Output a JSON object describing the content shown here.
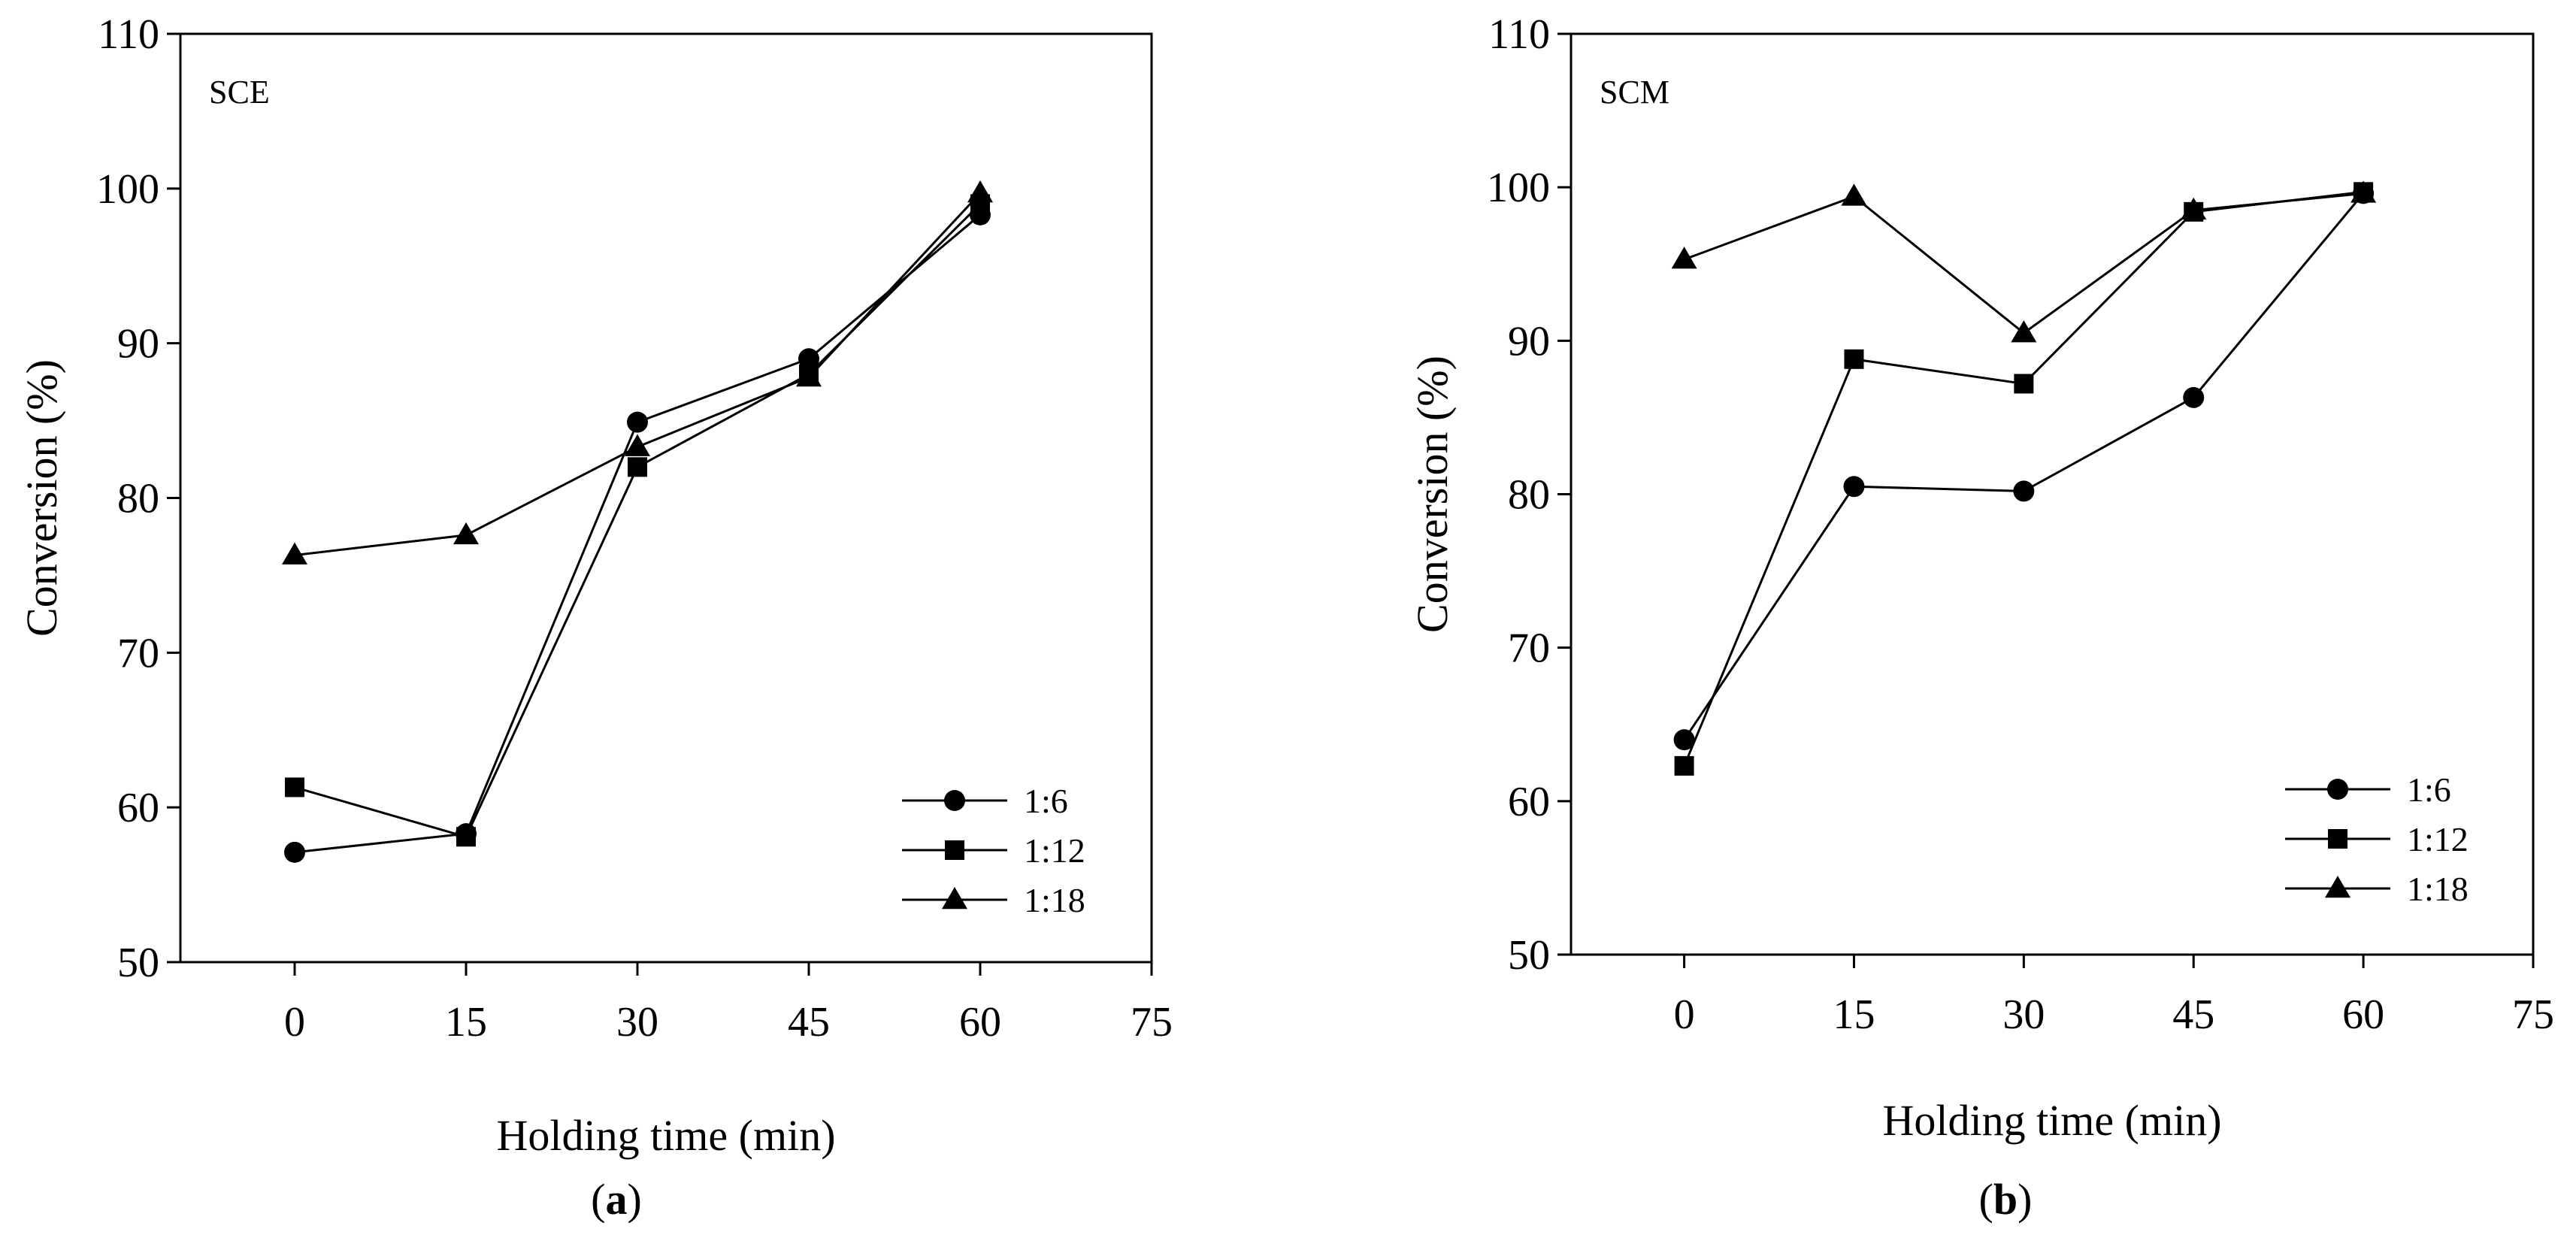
{
  "chart_data": [
    {
      "type": "line",
      "panel_label": "SCE",
      "caption_open": "(",
      "caption_letter": "a",
      "caption_close": ")",
      "xlabel": "Holding time (min)",
      "ylabel": "Conversion (%)",
      "xlim": [
        -10,
        75
      ],
      "ylim": [
        50,
        110
      ],
      "xticks": [
        0,
        15,
        30,
        45,
        60,
        75
      ],
      "yticks": [
        50,
        60,
        70,
        80,
        90,
        100,
        110
      ],
      "legend_position": "bottom-right",
      "x": [
        0,
        15,
        30,
        45,
        60
      ],
      "series": [
        {
          "name": "1:6",
          "marker": "circle",
          "values": [
            57.1,
            58.3,
            84.9,
            89.0,
            98.3
          ]
        },
        {
          "name": "1:12",
          "marker": "square",
          "values": [
            61.3,
            58.1,
            82.0,
            88.0,
            99.0
          ]
        },
        {
          "name": "1:18",
          "marker": "triangle",
          "values": [
            76.3,
            77.6,
            83.3,
            87.8,
            99.7
          ]
        }
      ]
    },
    {
      "type": "line",
      "panel_label": "SCM",
      "caption_open": "(",
      "caption_letter": "b",
      "caption_close": ")",
      "xlabel": "Holding time (min)",
      "ylabel": "Conversion (%)",
      "xlim": [
        -10,
        75
      ],
      "ylim": [
        50,
        110
      ],
      "xticks": [
        0,
        15,
        30,
        45,
        60,
        75
      ],
      "yticks": [
        50,
        60,
        70,
        80,
        90,
        100,
        110
      ],
      "legend_position": "bottom-right",
      "x": [
        0,
        15,
        30,
        45,
        60
      ],
      "series": [
        {
          "name": "1:6",
          "marker": "circle",
          "values": [
            64.0,
            80.5,
            80.2,
            86.3,
            99.6
          ]
        },
        {
          "name": "1:12",
          "marker": "square",
          "values": [
            62.3,
            88.8,
            87.2,
            98.4,
            99.7
          ]
        },
        {
          "name": "1:18",
          "marker": "triangle",
          "values": [
            95.3,
            99.4,
            90.5,
            98.5,
            99.6
          ]
        }
      ]
    }
  ]
}
